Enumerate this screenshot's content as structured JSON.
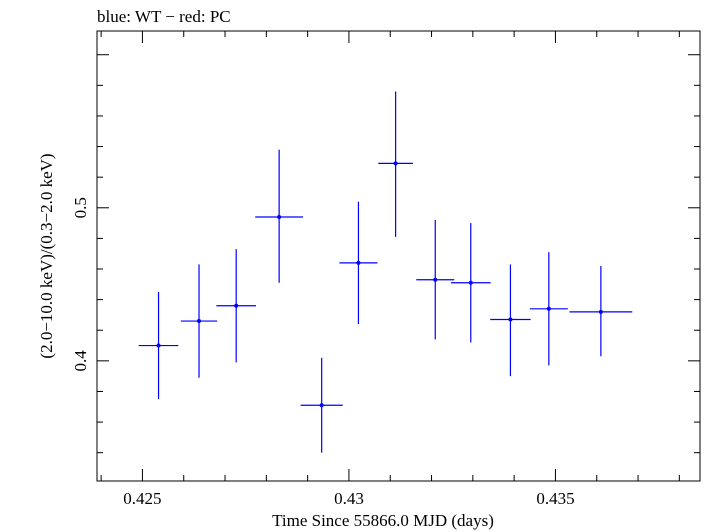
{
  "chart_data": {
    "type": "scatter",
    "title": "blue: WT − red: PC",
    "xlabel": "Time Since 55866.0 MJD (days)",
    "ylabel": "(2.0−10.0 keV)/(0.3−2.0 keV)",
    "xlim": [
      0.4239,
      0.4385
    ],
    "ylim": [
      0.3215,
      0.6155
    ],
    "x_ticks": [
      {
        "value": 0.425,
        "label": "0.425"
      },
      {
        "value": 0.43,
        "label": "0.43"
      },
      {
        "value": 0.435,
        "label": "0.435"
      }
    ],
    "y_ticks": [
      {
        "value": 0.4,
        "label": "0.4"
      },
      {
        "value": 0.5,
        "label": "0.5"
      }
    ],
    "grid": false,
    "series": [
      {
        "color": "#0000ff",
        "points": [
          {
            "x": 0.42539,
            "y": 0.41,
            "xerr": 0.00048,
            "ylo": 0.375,
            "yhi": 0.445
          },
          {
            "x": 0.42637,
            "y": 0.426,
            "xerr": 0.00044,
            "ylo": 0.389,
            "yhi": 0.463
          },
          {
            "x": 0.42727,
            "y": 0.436,
            "xerr": 0.00048,
            "ylo": 0.399,
            "yhi": 0.473
          },
          {
            "x": 0.42831,
            "y": 0.494,
            "xerr": 0.00058,
            "ylo": 0.451,
            "yhi": 0.538
          },
          {
            "x": 0.42934,
            "y": 0.371,
            "xerr": 0.00051,
            "ylo": 0.34,
            "yhi": 0.402
          },
          {
            "x": 0.43023,
            "y": 0.464,
            "xerr": 0.00046,
            "ylo": 0.424,
            "yhi": 0.504
          },
          {
            "x": 0.43113,
            "y": 0.529,
            "xerr": 0.00042,
            "ylo": 0.481,
            "yhi": 0.576
          },
          {
            "x": 0.43209,
            "y": 0.453,
            "xerr": 0.00046,
            "ylo": 0.414,
            "yhi": 0.492
          },
          {
            "x": 0.43295,
            "y": 0.451,
            "xerr": 0.00048,
            "ylo": 0.412,
            "yhi": 0.49
          },
          {
            "x": 0.43391,
            "y": 0.427,
            "xerr": 0.00049,
            "ylo": 0.39,
            "yhi": 0.463
          },
          {
            "x": 0.43484,
            "y": 0.434,
            "xerr": 0.00046,
            "ylo": 0.397,
            "yhi": 0.471
          },
          {
            "x": 0.4361,
            "y": 0.432,
            "xerr": 0.00076,
            "ylo": 0.403,
            "yhi": 0.462
          }
        ]
      }
    ]
  }
}
